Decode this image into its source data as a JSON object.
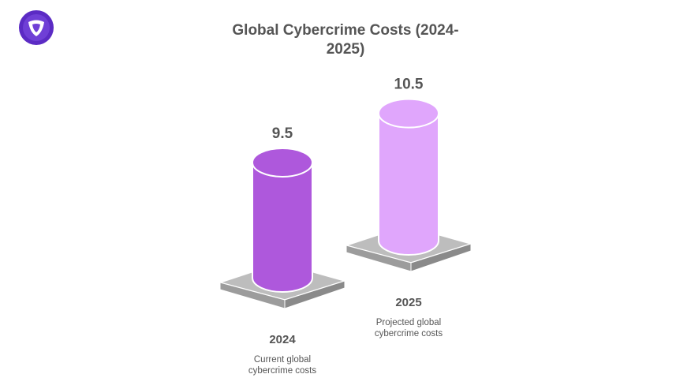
{
  "logo": {
    "icon": "shield-logo-icon",
    "bg": "#5b2bc4",
    "fg": "#ffffff"
  },
  "chart_data": {
    "type": "bar",
    "title": "Global Cybercrime Costs (2024-2025)",
    "xlabel": "",
    "ylabel": "",
    "categories": [
      "2024",
      "2025"
    ],
    "values": [
      9.5,
      10.5
    ],
    "value_labels": [
      "9.5",
      "10.5"
    ],
    "descriptions": [
      [
        "Current global",
        "cybercrime costs"
      ],
      [
        "Projected global",
        "cybercrime costs"
      ]
    ],
    "colors": [
      "#ae58dc",
      "#e0a6fc"
    ],
    "grid": false,
    "legend": "none"
  }
}
